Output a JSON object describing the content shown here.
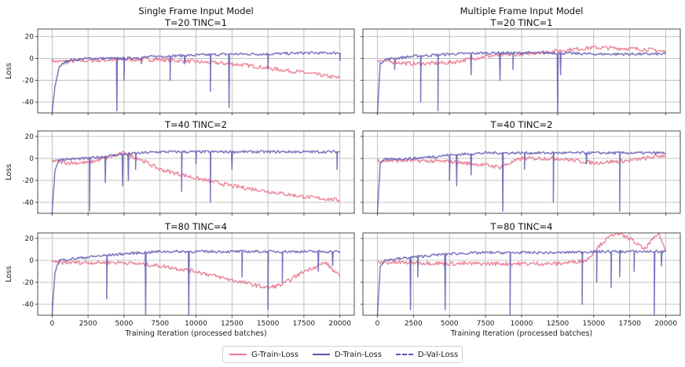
{
  "figure": {
    "column_titles": [
      "Single Frame Input Model",
      "Multiple Frame Input Model"
    ],
    "ylabel": "Loss",
    "xlabel": "Training Iteration (processed batches)"
  },
  "legend": [
    {
      "label": "G-Train-Loss",
      "color": "#e8788d",
      "style": "solid"
    },
    {
      "label": "D-Train-Loss",
      "color": "#5a56b0",
      "style": "solid"
    },
    {
      "label": "D-Val-Loss",
      "color": "#5a56b0",
      "style": "dashed"
    }
  ],
  "chart_data": [
    {
      "type": "line",
      "title": "T=20 TINC=1",
      "xlim": [
        -1000,
        21000
      ],
      "ylim": [
        -50,
        27
      ],
      "grid": true,
      "xticks": [
        0,
        2500,
        5000,
        7500,
        10000,
        12500,
        15000,
        17500,
        20000
      ],
      "yticks": [
        20,
        0,
        -20,
        -40
      ],
      "series": [
        {
          "name": "G-Train-Loss",
          "x": [
            0,
            500,
            2500,
            5000,
            7500,
            10000,
            12500,
            14000,
            15000,
            17500,
            20000
          ],
          "y": [
            -2,
            -3,
            -2,
            -1,
            -1,
            -3,
            -5,
            -7,
            -9,
            -13,
            -18
          ]
        },
        {
          "name": "D-Train-Loss",
          "x": [
            0,
            200,
            500,
            1000,
            2500,
            5000,
            7500,
            10000,
            12500,
            15000,
            17500,
            20000
          ],
          "y": [
            -50,
            -25,
            -8,
            -2,
            0,
            0,
            2,
            3,
            4,
            4,
            5,
            5
          ],
          "spikes": [
            [
              1000,
              -5
            ],
            [
              4500,
              -48
            ],
            [
              5000,
              -20
            ],
            [
              6200,
              -5
            ],
            [
              8200,
              -20
            ],
            [
              9200,
              -5
            ],
            [
              11000,
              -30
            ],
            [
              12300,
              -45
            ],
            [
              15000,
              -10
            ],
            [
              20000,
              -2
            ]
          ]
        }
      ]
    },
    {
      "type": "line",
      "title": "T=20 TINC=1",
      "xlim": [
        -1000,
        21000
      ],
      "ylim": [
        -50,
        27
      ],
      "grid": true,
      "xticks": [
        0,
        2500,
        5000,
        7500,
        10000,
        12500,
        15000,
        17500,
        20000
      ],
      "yticks": [
        20,
        0,
        -20,
        -40
      ],
      "series": [
        {
          "name": "G-Train-Loss",
          "x": [
            0,
            2500,
            5000,
            7500,
            10000,
            12500,
            15000,
            17500,
            19000,
            20000
          ],
          "y": [
            -2,
            -5,
            -4,
            2,
            4,
            7,
            10,
            9,
            8,
            6
          ]
        },
        {
          "name": "D-Train-Loss",
          "x": [
            0,
            200,
            500,
            2500,
            5000,
            7500,
            10000,
            12500,
            15000,
            17500,
            20000
          ],
          "y": [
            -50,
            -5,
            -1,
            2,
            4,
            5,
            5,
            5,
            4,
            4,
            4
          ],
          "spikes": [
            [
              1200,
              -10
            ],
            [
              3000,
              -40
            ],
            [
              4200,
              -48
            ],
            [
              6500,
              -15
            ],
            [
              8500,
              -20
            ],
            [
              9400,
              -10
            ],
            [
              12500,
              -50
            ],
            [
              12700,
              -15
            ]
          ]
        }
      ]
    },
    {
      "type": "line",
      "title": "T=40 TINC=2",
      "xlim": [
        -1000,
        21000
      ],
      "ylim": [
        -50,
        25
      ],
      "grid": true,
      "xticks": [
        0,
        2500,
        5000,
        7500,
        10000,
        12500,
        15000,
        17500,
        20000
      ],
      "yticks": [
        20,
        0,
        -20,
        -40
      ],
      "series": [
        {
          "name": "G-Train-Loss",
          "x": [
            0,
            1000,
            2500,
            5000,
            6000,
            7500,
            10000,
            12500,
            15000,
            17500,
            20000
          ],
          "y": [
            -2,
            -4,
            -4,
            5,
            0,
            -10,
            -18,
            -25,
            -30,
            -35,
            -38
          ]
        },
        {
          "name": "D-Train-Loss",
          "x": [
            0,
            200,
            500,
            2500,
            5000,
            7500,
            10000,
            12500,
            15000,
            17500,
            20000
          ],
          "y": [
            -50,
            -10,
            -1,
            0,
            4,
            6,
            6,
            6,
            6,
            6,
            6
          ],
          "spikes": [
            [
              2600,
              -48
            ],
            [
              3700,
              -22
            ],
            [
              4900,
              -25
            ],
            [
              5300,
              -20
            ],
            [
              5800,
              -10
            ],
            [
              9000,
              -30
            ],
            [
              10000,
              -5
            ],
            [
              11000,
              -40
            ],
            [
              12500,
              -10
            ],
            [
              19800,
              -10
            ]
          ]
        }
      ]
    },
    {
      "type": "line",
      "title": "T=40 TINC=2",
      "xlim": [
        -1000,
        21000
      ],
      "ylim": [
        -50,
        25
      ],
      "grid": true,
      "xticks": [
        0,
        2500,
        5000,
        7500,
        10000,
        12500,
        15000,
        17500,
        20000
      ],
      "yticks": [
        20,
        0,
        -20,
        -40
      ],
      "series": [
        {
          "name": "G-Train-Loss",
          "x": [
            0,
            2500,
            5000,
            7500,
            8500,
            10000,
            12500,
            15000,
            17500,
            20000
          ],
          "y": [
            -2,
            -2,
            -3,
            -6,
            -8,
            0,
            0,
            -4,
            -2,
            3
          ]
        },
        {
          "name": "D-Train-Loss",
          "x": [
            0,
            200,
            500,
            2500,
            5000,
            7500,
            10000,
            12500,
            15000,
            17500,
            20000
          ],
          "y": [
            -50,
            -5,
            -1,
            0,
            3,
            5,
            5,
            5,
            5,
            5,
            5
          ],
          "spikes": [
            [
              5000,
              -20
            ],
            [
              5500,
              -25
            ],
            [
              6500,
              -15
            ],
            [
              8700,
              -48
            ],
            [
              10200,
              -10
            ],
            [
              12200,
              -40
            ],
            [
              14500,
              -5
            ],
            [
              16800,
              -48
            ]
          ]
        }
      ]
    },
    {
      "type": "line",
      "title": "T=80 TINC=4",
      "xlim": [
        -1000,
        21000
      ],
      "ylim": [
        -50,
        25
      ],
      "grid": true,
      "xticks": [
        0,
        2500,
        5000,
        7500,
        10000,
        12500,
        15000,
        17500,
        20000
      ],
      "yticks": [
        20,
        0,
        -20,
        -40
      ],
      "series": [
        {
          "name": "G-Train-Loss",
          "x": [
            0,
            2500,
            5000,
            7500,
            10000,
            12500,
            15000,
            16000,
            17500,
            19000,
            20000
          ],
          "y": [
            -2,
            -2,
            -2,
            -5,
            -10,
            -18,
            -25,
            -22,
            -10,
            -2,
            -15
          ]
        },
        {
          "name": "D-Train-Loss",
          "x": [
            0,
            200,
            500,
            2500,
            5000,
            7500,
            10000,
            12500,
            15000,
            17500,
            20000
          ],
          "y": [
            -50,
            -10,
            0,
            3,
            6,
            8,
            8,
            8,
            8,
            8,
            8
          ],
          "spikes": [
            [
              3800,
              -35
            ],
            [
              6500,
              -50
            ],
            [
              9500,
              -50
            ],
            [
              13200,
              -15
            ],
            [
              15000,
              -45
            ],
            [
              16000,
              -20
            ],
            [
              18500,
              -10
            ],
            [
              19500,
              -5
            ]
          ]
        }
      ]
    },
    {
      "type": "line",
      "title": "T=80 TINC=4",
      "xlim": [
        -1000,
        21000
      ],
      "ylim": [
        -50,
        25
      ],
      "grid": true,
      "xticks": [
        0,
        2500,
        5000,
        7500,
        10000,
        12500,
        15000,
        17500,
        20000
      ],
      "yticks": [
        20,
        0,
        -20,
        -40
      ],
      "series": [
        {
          "name": "G-Train-Loss",
          "x": [
            0,
            2500,
            5000,
            7500,
            10000,
            12500,
            14500,
            15500,
            16500,
            17500,
            18500,
            19500,
            20000
          ],
          "y": [
            -2,
            -2,
            -3,
            -3,
            -3,
            -3,
            0,
            15,
            25,
            20,
            10,
            25,
            8
          ]
        },
        {
          "name": "D-Train-Loss",
          "x": [
            0,
            200,
            500,
            2500,
            5000,
            7500,
            10000,
            12500,
            15000,
            17500,
            20000
          ],
          "y": [
            -50,
            -5,
            0,
            3,
            6,
            7,
            7,
            7,
            8,
            8,
            8
          ],
          "spikes": [
            [
              2300,
              -45
            ],
            [
              2800,
              -15
            ],
            [
              4700,
              -45
            ],
            [
              9200,
              -50
            ],
            [
              14200,
              -40
            ],
            [
              15200,
              -20
            ],
            [
              16200,
              -25
            ],
            [
              16800,
              -15
            ],
            [
              17800,
              -10
            ],
            [
              19200,
              -50
            ],
            [
              19700,
              -5
            ]
          ]
        }
      ]
    }
  ]
}
